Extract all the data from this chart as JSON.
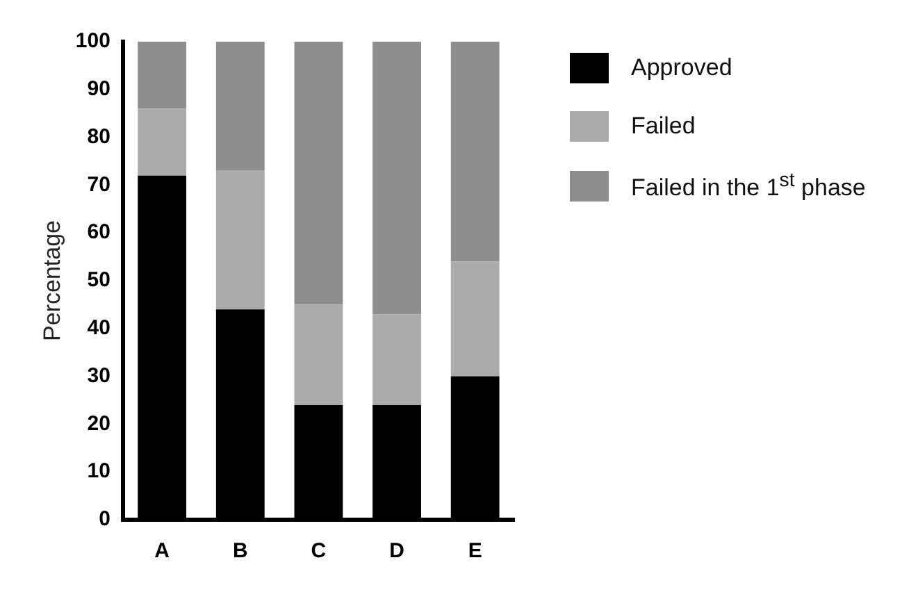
{
  "chart_data": {
    "type": "bar",
    "stacked": true,
    "ylabel": "Percentage",
    "categories": [
      "A",
      "B",
      "C",
      "D",
      "E"
    ],
    "series": [
      {
        "name": "Approved",
        "color": "#000000",
        "values": [
          72,
          44,
          24,
          24,
          30
        ]
      },
      {
        "name": "Failed",
        "color": "#ababab",
        "values": [
          14,
          29,
          21,
          19,
          24
        ]
      },
      {
        "name": "Failed in the 1$^{st}$ phase",
        "color": "#8e8e8e",
        "values": [
          14,
          27,
          55,
          57,
          46
        ]
      }
    ],
    "ylim": [
      0,
      100
    ],
    "yticks": [
      0,
      10,
      20,
      30,
      40,
      50,
      60,
      70,
      80,
      90,
      100
    ],
    "grid": false,
    "legend": "right"
  }
}
